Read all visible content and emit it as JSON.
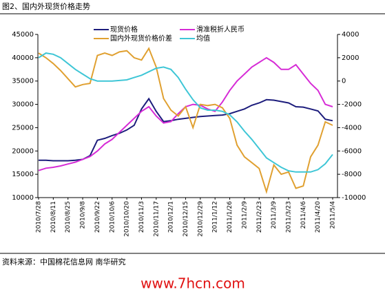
{
  "chart_data": {
    "type": "line",
    "title": "图2、国内外现货价格走势",
    "source": "资料来源：中国棉花信息网 南华研究",
    "watermark": "www.7hcn.com",
    "legend": "top",
    "categories": [
      "2010/7/28",
      null,
      "2010/8/11",
      null,
      "2010/8/25",
      null,
      "2010/9/8",
      null,
      "2010/9/22",
      null,
      "2010/10/6",
      null,
      "2010/10/20",
      null,
      "2010/11/3",
      null,
      "2010/11/17",
      null,
      "2010/12/1",
      null,
      "2010/12/15",
      null,
      "2010/12/29",
      null,
      "2011/1/12",
      null,
      "2011/1/26",
      null,
      "2011/2/9",
      null,
      "2011/2/23",
      null,
      "2011/3/9",
      null,
      "2011/3/23",
      null,
      "2011/4/6",
      null,
      "2011/4/20",
      null,
      "2011/5/4"
    ],
    "ylim": [
      10000,
      45000
    ],
    "yticks": [
      10000,
      15000,
      20000,
      25000,
      30000,
      35000,
      40000,
      45000
    ],
    "y2lim": [
      -10000,
      4000
    ],
    "y2ticks": [
      -10000,
      -8000,
      -6000,
      -4000,
      -2000,
      0,
      2000,
      4000
    ],
    "series": [
      {
        "name": "现货价格",
        "color": "#1c1c7c",
        "axis": "y",
        "values": [
          18000,
          18000,
          17900,
          17900,
          17900,
          18000,
          18200,
          19000,
          22300,
          22700,
          23300,
          23800,
          24500,
          25500,
          29000,
          31200,
          28500,
          26300,
          26500,
          26800,
          27000,
          27200,
          27400,
          27500,
          27600,
          27700,
          28000,
          28500,
          29000,
          29800,
          30300,
          31000,
          30900,
          30600,
          30300,
          29500,
          29400,
          29000,
          28600,
          26800,
          26500
        ]
      },
      {
        "name": "滑准税折人民币",
        "color": "#d62bd6",
        "axis": "y",
        "values": [
          15800,
          16300,
          16500,
          16800,
          17200,
          17600,
          18200,
          18800,
          20000,
          21500,
          22500,
          24000,
          25500,
          27000,
          28500,
          29500,
          27500,
          26000,
          26300,
          28000,
          29500,
          30000,
          29800,
          29000,
          28500,
          30500,
          33000,
          35000,
          36500,
          38000,
          39000,
          40000,
          39000,
          37500,
          37500,
          38500,
          36500,
          34500,
          33000,
          30000,
          29500
        ]
      },
      {
        "name": "国内外现货价格价差",
        "color": "#e0a030",
        "axis": "y2",
        "values": [
          2400,
          2000,
          1500,
          900,
          200,
          -500,
          -300,
          -200,
          2200,
          2400,
          2200,
          2500,
          2600,
          2000,
          1800,
          2800,
          1200,
          -1500,
          -2500,
          -3000,
          -2200,
          -4000,
          -2000,
          -2100,
          -2000,
          -2300,
          -3200,
          -5500,
          -6500,
          -7000,
          -7500,
          -9500,
          -7200,
          -8000,
          -7800,
          -9200,
          -9000,
          -6500,
          -5500,
          -3500,
          -3800
        ]
      },
      {
        "name": "均值",
        "color": "#3ec6d6",
        "axis": "y2",
        "values": [
          2000,
          2400,
          2300,
          2000,
          1500,
          1000,
          600,
          200,
          0,
          0,
          0,
          50,
          100,
          300,
          500,
          800,
          1100,
          1200,
          1000,
          300,
          -700,
          -1600,
          -2300,
          -2500,
          -2500,
          -2600,
          -2900,
          -3500,
          -4300,
          -5000,
          -5800,
          -6600,
          -7000,
          -7400,
          -7700,
          -7800,
          -7800,
          -7800,
          -7600,
          -7100,
          -6300
        ]
      }
    ]
  }
}
